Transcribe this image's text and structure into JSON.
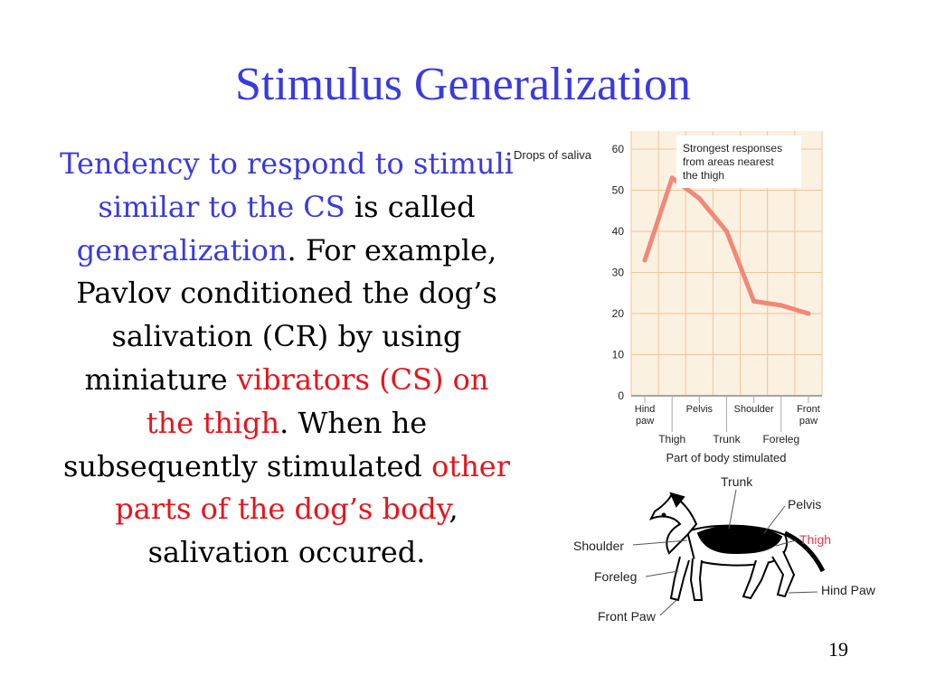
{
  "slide": {
    "title": "Stimulus Generalization",
    "page_number": "19",
    "paragraph": [
      {
        "text": "Tendency to respond to stimuli similar to the CS",
        "color": "blue"
      },
      {
        "text": " is called ",
        "color": "black"
      },
      {
        "text": "generalization",
        "color": "blue"
      },
      {
        "text": ". For example, Pavlov conditioned the dog’s salivation (CR) by using miniature ",
        "color": "black"
      },
      {
        "text": "vibrators (CS) on the thigh",
        "color": "red"
      },
      {
        "text": ". When he subsequently stimulated ",
        "color": "black"
      },
      {
        "text": "other parts of the dog’s body",
        "color": "red"
      },
      {
        "text": ", salivation occured.",
        "color": "black"
      }
    ]
  },
  "colors": {
    "title": "#3a3ae0",
    "highlight_blue": "#3a3ae0",
    "highlight_red": "#e8141b",
    "line": "#f08878",
    "plot_bg": "#fbf1e1"
  },
  "chart_data": {
    "type": "line",
    "title": "",
    "ylabel": "Drops of saliva",
    "xlabel": "Part of body stimulated",
    "categories": [
      "Hind paw",
      "Thigh",
      "Pelvis",
      "Trunk",
      "Shoulder",
      "Foreleg",
      "Front paw"
    ],
    "series": [
      {
        "values": [
          33,
          53,
          48,
          40,
          23,
          22,
          20
        ]
      }
    ],
    "ylim": [
      0,
      60
    ],
    "yticks": [
      "0",
      "10",
      "20",
      "30",
      "40",
      "50",
      "60"
    ],
    "top_tick_labels": [
      "Hind paw",
      "Pelvis",
      "Shoulder",
      "Front paw"
    ],
    "bottom_tick_labels": [
      "Thigh",
      "Trunk",
      "Foreleg"
    ],
    "grid": true,
    "annotation": "Strongest responses from areas nearest the thigh"
  },
  "dog_diagram": {
    "labels": {
      "trunk": "Trunk",
      "pelvis": "Pelvis",
      "thigh": "Thigh",
      "shoulder": "Shoulder",
      "foreleg": "Foreleg",
      "hind_paw": "Hind Paw",
      "front_paw": "Front Paw"
    }
  }
}
